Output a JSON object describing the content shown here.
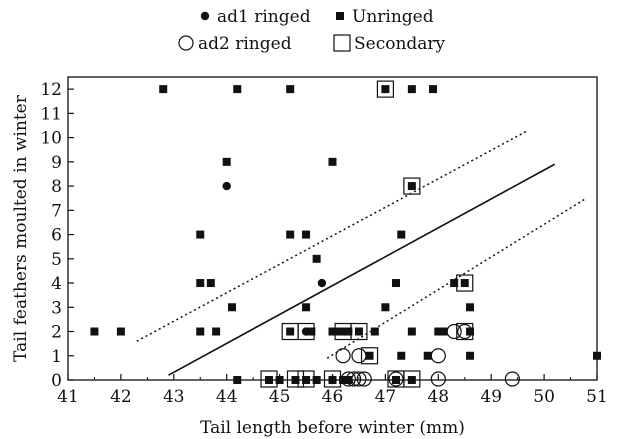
{
  "chart_data": {
    "type": "scatter",
    "title": "",
    "xlabel": "Tail length before winter (mm)",
    "ylabel": "Tail feathers moulted in winter",
    "xlim": [
      41,
      51
    ],
    "ylim": [
      0,
      12.5
    ],
    "xticks": [
      "41",
      "42",
      "43",
      "44",
      "45",
      "46",
      "47",
      "48",
      "49",
      "50",
      "51"
    ],
    "yticks": [
      "0",
      "1",
      "2",
      "3",
      "4",
      "5",
      "6",
      "7",
      "8",
      "9",
      "10",
      "11",
      "12"
    ],
    "grid": false,
    "legend": {
      "placement": "top",
      "entries": [
        {
          "name": "ad1 ringed",
          "marker": "filled-circle"
        },
        {
          "name": "Unringed",
          "marker": "filled-square"
        },
        {
          "name": "ad2 ringed",
          "marker": "open-circle"
        },
        {
          "name": "Secondary",
          "marker": "open-square"
        }
      ]
    },
    "series": [
      {
        "name": "Unringed",
        "marker": "filled-square",
        "points": [
          [
            42.8,
            12
          ],
          [
            44.2,
            12
          ],
          [
            45.2,
            12
          ],
          [
            47.0,
            12
          ],
          [
            47.5,
            12
          ],
          [
            47.9,
            12
          ],
          [
            44.0,
            9
          ],
          [
            46.0,
            9
          ],
          [
            47.5,
            8
          ],
          [
            43.5,
            6
          ],
          [
            45.2,
            6
          ],
          [
            45.5,
            6
          ],
          [
            47.3,
            6
          ],
          [
            45.7,
            5
          ],
          [
            43.5,
            4
          ],
          [
            43.7,
            4
          ],
          [
            47.2,
            4
          ],
          [
            48.3,
            4
          ],
          [
            48.5,
            4
          ],
          [
            44.1,
            3
          ],
          [
            45.5,
            3
          ],
          [
            47.0,
            3
          ],
          [
            48.6,
            3
          ],
          [
            41.5,
            2
          ],
          [
            42.0,
            2
          ],
          [
            43.5,
            2
          ],
          [
            43.8,
            2
          ],
          [
            45.2,
            2
          ],
          [
            45.6,
            2
          ],
          [
            46.0,
            2
          ],
          [
            46.1,
            2
          ],
          [
            46.2,
            2
          ],
          [
            46.3,
            2
          ],
          [
            46.5,
            2
          ],
          [
            46.8,
            2
          ],
          [
            47.5,
            2
          ],
          [
            48.0,
            2
          ],
          [
            48.1,
            2
          ],
          [
            48.6,
            2
          ],
          [
            46.7,
            1
          ],
          [
            47.3,
            1
          ],
          [
            47.8,
            1
          ],
          [
            48.6,
            1
          ],
          [
            51.0,
            1
          ],
          [
            44.2,
            0
          ],
          [
            44.8,
            0
          ],
          [
            45.0,
            0
          ],
          [
            45.3,
            0
          ],
          [
            45.5,
            0
          ],
          [
            45.7,
            0
          ],
          [
            46.0,
            0
          ],
          [
            46.2,
            0
          ],
          [
            46.3,
            0
          ],
          [
            47.2,
            0
          ],
          [
            47.5,
            0
          ]
        ]
      },
      {
        "name": "ad1 ringed",
        "marker": "filled-circle",
        "points": [
          [
            44.0,
            8
          ],
          [
            45.8,
            4
          ],
          [
            45.5,
            2
          ],
          [
            46.0,
            0
          ]
        ]
      },
      {
        "name": "ad2 ringed",
        "marker": "open-circle",
        "points": [
          [
            48.3,
            2
          ],
          [
            48.5,
            2
          ],
          [
            46.2,
            1
          ],
          [
            46.5,
            1
          ],
          [
            48.0,
            1
          ],
          [
            46.3,
            0
          ],
          [
            46.4,
            0
          ],
          [
            46.5,
            0
          ],
          [
            46.6,
            0
          ],
          [
            47.2,
            0
          ],
          [
            48.0,
            0
          ],
          [
            49.4,
            0
          ]
        ]
      },
      {
        "name": "Secondary",
        "marker": "open-square",
        "points": [
          [
            47.0,
            12
          ],
          [
            47.5,
            8
          ],
          [
            48.5,
            4
          ],
          [
            45.2,
            2
          ],
          [
            45.5,
            2
          ],
          [
            46.2,
            2
          ],
          [
            46.5,
            2
          ],
          [
            48.5,
            2
          ],
          [
            46.7,
            1
          ],
          [
            44.8,
            0
          ],
          [
            45.3,
            0
          ],
          [
            45.5,
            0
          ],
          [
            46.0,
            0
          ],
          [
            47.2,
            0
          ],
          [
            47.5,
            0
          ]
        ]
      }
    ],
    "lines": [
      {
        "style": "solid",
        "points": [
          [
            42.9,
            0.2
          ],
          [
            50.2,
            8.9
          ]
        ]
      },
      {
        "style": "dotted",
        "points": [
          [
            42.3,
            1.6
          ],
          [
            49.7,
            10.3
          ]
        ]
      },
      {
        "style": "dotted",
        "points": [
          [
            45.9,
            0.9
          ],
          [
            50.8,
            7.5
          ]
        ]
      }
    ]
  }
}
